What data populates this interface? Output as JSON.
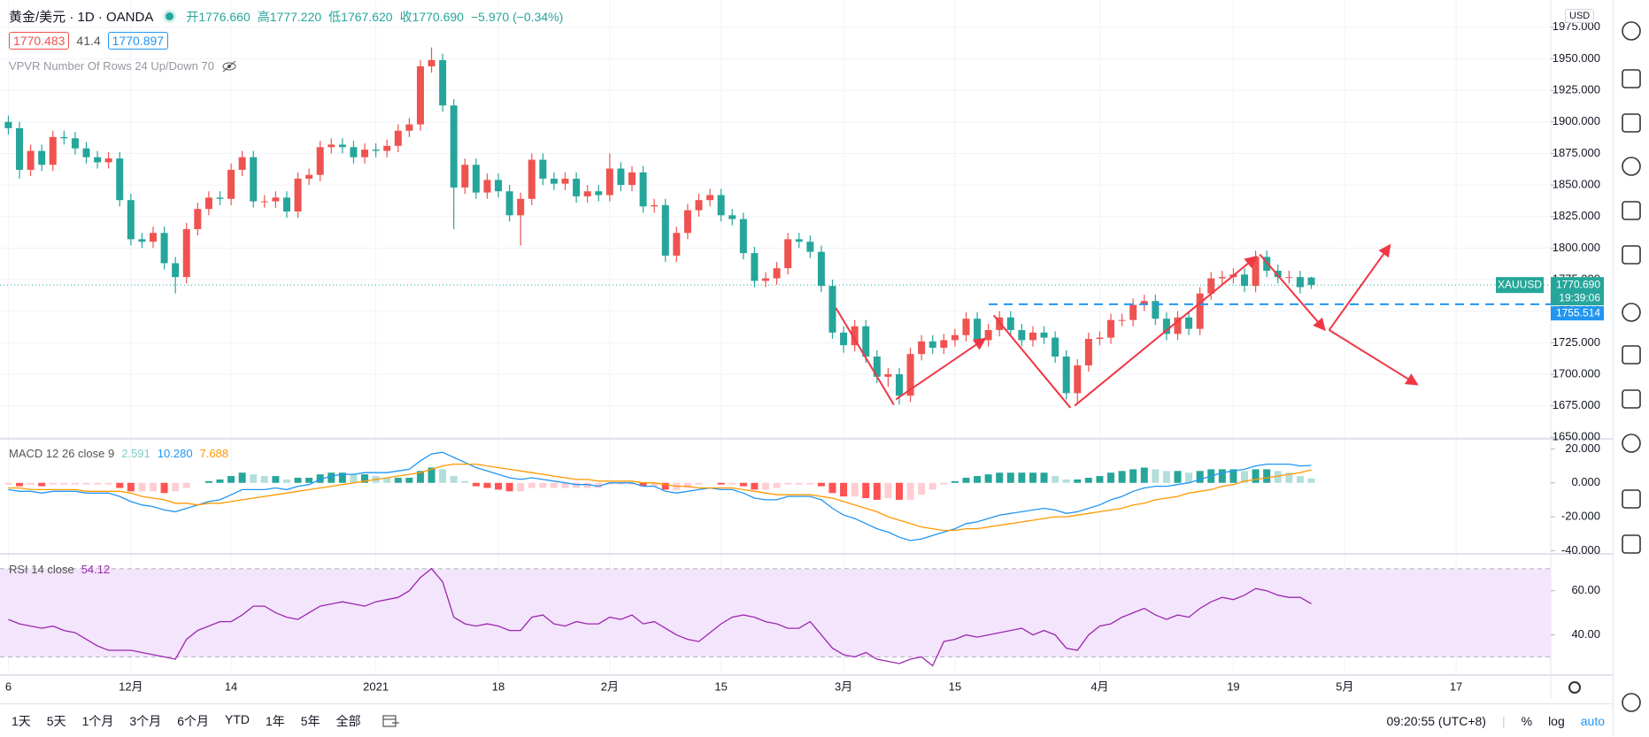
{
  "header": {
    "title": "黄金/美元 · 1D · OANDA",
    "ohlc": [
      "开1776.660",
      "高1777.220",
      "低1767.620",
      "收1770.690",
      "−5.970 (−0.34%)"
    ],
    "bid": "1770.483",
    "spread": "41.4",
    "ask": "1770.897",
    "indicator": "VPVR Number Of Rows 24 Up/Down 70",
    "currency": "USD"
  },
  "toolbar": {
    "ranges": [
      "1天",
      "5天",
      "1个月",
      "3个月",
      "6个月",
      "YTD",
      "1年",
      "5年",
      "全部"
    ],
    "clock": "09:20:55 (UTC+8)",
    "options": [
      "%",
      "log",
      "auto"
    ]
  },
  "chart_data": [
    {
      "type": "candlestick",
      "up_color": "#ef5350",
      "down_color": "#26a69a",
      "grid": true,
      "xlim": [
        -0.75,
        138.5
      ],
      "ylim": [
        1649.5,
        1996.6
      ],
      "yticks": [
        {
          "value": 1650,
          "label": "1650.000"
        },
        {
          "value": 1675,
          "label": "1675.000"
        },
        {
          "value": 1700,
          "label": "1700.000"
        },
        {
          "value": 1725,
          "label": "1725.000"
        },
        {
          "value": 1750,
          "label": "1750.000"
        },
        {
          "value": 1775,
          "label": "1775.000"
        },
        {
          "value": 1800,
          "label": "1800.000"
        },
        {
          "value": 1825,
          "label": "1825.000"
        },
        {
          "value": 1850,
          "label": "1850.000"
        },
        {
          "value": 1875,
          "label": "1875.000"
        },
        {
          "value": 1900,
          "label": "1900.000"
        },
        {
          "value": 1925,
          "label": "1925.000"
        },
        {
          "value": 1950,
          "label": "1950.000"
        },
        {
          "value": 1975,
          "label": "1975.000"
        }
      ],
      "xticks": [
        {
          "value": 0,
          "label": "6"
        },
        {
          "value": 11,
          "label": "12月"
        },
        {
          "value": 20,
          "label": "14"
        },
        {
          "value": 33,
          "label": "2021"
        },
        {
          "value": 44,
          "label": "18"
        },
        {
          "value": 54,
          "label": "2月"
        },
        {
          "value": 64,
          "label": "15"
        },
        {
          "value": 75,
          "label": "3月"
        },
        {
          "value": 85,
          "label": "15"
        },
        {
          "value": 98,
          "label": "4月"
        },
        {
          "value": 110,
          "label": "19"
        },
        {
          "value": 120,
          "label": "5月"
        },
        {
          "value": 130,
          "label": "17"
        }
      ],
      "open": [
        1900,
        1895,
        1862,
        1877,
        1866,
        1888,
        1887,
        1879,
        1872,
        1868,
        1871,
        1838,
        1807,
        1805,
        1812,
        1788,
        1777,
        1815,
        1831,
        1840,
        1839,
        1862,
        1872,
        1837,
        1837,
        1840,
        1829,
        1855,
        1858,
        1880,
        1882,
        1880,
        1872,
        1878,
        1877,
        1881,
        1893,
        1898,
        1944,
        1949,
        1913,
        1848,
        1866,
        1844,
        1854,
        1845,
        1826,
        1839,
        1870,
        1855,
        1851,
        1855,
        1841,
        1845,
        1842,
        1863,
        1850,
        1860,
        1833,
        1834,
        1794,
        1812,
        1830,
        1838,
        1842,
        1826,
        1823,
        1796,
        1774,
        1776,
        1784,
        1807,
        1805,
        1797,
        1770,
        1733,
        1723,
        1738,
        1714,
        1698,
        1700,
        1683,
        1716,
        1726,
        1721,
        1727,
        1731,
        1744,
        1727,
        1735,
        1745,
        1735,
        1727,
        1733,
        1729,
        1714,
        1685,
        1707,
        1728,
        1729,
        1743,
        1743,
        1755,
        1758,
        1744,
        1732,
        1745,
        1736,
        1764,
        1776,
        1777,
        1779,
        1770,
        1793,
        1782,
        1777,
        1777,
        1776.66
      ],
      "high": [
        1905,
        1900,
        1882,
        1882,
        1893,
        1893,
        1892,
        1884,
        1877,
        1876,
        1876,
        1843,
        1812,
        1817,
        1817,
        1793,
        1820,
        1836,
        1845,
        1845,
        1867,
        1877,
        1877,
        1842,
        1845,
        1845,
        1860,
        1863,
        1885,
        1887,
        1887,
        1885,
        1883,
        1883,
        1886,
        1898,
        1903,
        1949,
        1959,
        1954,
        1918,
        1871,
        1871,
        1859,
        1859,
        1850,
        1844,
        1875,
        1875,
        1860,
        1860,
        1860,
        1850,
        1850,
        1875,
        1868,
        1865,
        1865,
        1839,
        1839,
        1817,
        1835,
        1843,
        1847,
        1847,
        1831,
        1828,
        1801,
        1781,
        1789,
        1812,
        1812,
        1810,
        1802,
        1775,
        1738,
        1743,
        1743,
        1719,
        1705,
        1705,
        1721,
        1731,
        1731,
        1732,
        1736,
        1749,
        1749,
        1740,
        1750,
        1750,
        1740,
        1738,
        1738,
        1734,
        1719,
        1712,
        1733,
        1734,
        1748,
        1748,
        1760,
        1763,
        1763,
        1749,
        1750,
        1750,
        1769,
        1781,
        1782,
        1784,
        1784,
        1798,
        1798,
        1787,
        1782,
        1782,
        1777.22
      ],
      "low": [
        1890,
        1855,
        1857,
        1861,
        1861,
        1882,
        1874,
        1867,
        1863,
        1863,
        1833,
        1802,
        1800,
        1800,
        1783,
        1764,
        1772,
        1810,
        1826,
        1834,
        1834,
        1857,
        1832,
        1832,
        1832,
        1824,
        1824,
        1850,
        1853,
        1875,
        1875,
        1867,
        1867,
        1872,
        1872,
        1876,
        1888,
        1893,
        1939,
        1908,
        1815,
        1843,
        1839,
        1839,
        1840,
        1821,
        1802,
        1834,
        1850,
        1846,
        1846,
        1836,
        1836,
        1837,
        1837,
        1845,
        1845,
        1828,
        1828,
        1789,
        1789,
        1807,
        1825,
        1833,
        1821,
        1818,
        1791,
        1769,
        1769,
        1771,
        1779,
        1800,
        1792,
        1765,
        1728,
        1717,
        1718,
        1709,
        1693,
        1690,
        1676,
        1678,
        1711,
        1716,
        1716,
        1722,
        1726,
        1722,
        1722,
        1730,
        1730,
        1722,
        1722,
        1724,
        1709,
        1680,
        1677,
        1702,
        1723,
        1724,
        1738,
        1738,
        1750,
        1739,
        1727,
        1727,
        1731,
        1731,
        1759,
        1771,
        1772,
        1765,
        1765,
        1777,
        1772,
        1772,
        1764,
        1767.62
      ],
      "close": [
        1895,
        1862,
        1877,
        1866,
        1888,
        1887,
        1879,
        1872,
        1868,
        1871,
        1838,
        1807,
        1805,
        1812,
        1788,
        1777,
        1815,
        1831,
        1840,
        1839,
        1862,
        1872,
        1837,
        1837,
        1840,
        1829,
        1855,
        1858,
        1880,
        1882,
        1880,
        1872,
        1878,
        1877,
        1881,
        1893,
        1898,
        1944,
        1949,
        1913,
        1848,
        1866,
        1844,
        1854,
        1845,
        1826,
        1839,
        1870,
        1855,
        1851,
        1855,
        1841,
        1845,
        1842,
        1863,
        1850,
        1860,
        1833,
        1834,
        1794,
        1812,
        1830,
        1838,
        1842,
        1826,
        1823,
        1796,
        1774,
        1776,
        1784,
        1807,
        1805,
        1797,
        1770,
        1733,
        1723,
        1738,
        1714,
        1698,
        1700,
        1683,
        1716,
        1726,
        1721,
        1727,
        1731,
        1744,
        1727,
        1735,
        1745,
        1735,
        1727,
        1733,
        1729,
        1714,
        1685,
        1707,
        1728,
        1729,
        1743,
        1743,
        1755,
        1758,
        1744,
        1732,
        1745,
        1736,
        1764,
        1776,
        1777,
        1779,
        1770,
        1793,
        1782,
        1777,
        1777,
        1769,
        1770.69
      ],
      "last_price": {
        "value": 1770.69,
        "label": "1770.690",
        "color": "#26a69a"
      },
      "symbol_tag": "XAUUSD",
      "countdown": "19:39:06",
      "level": {
        "value": 1755.514,
        "label": "1755.514",
        "color": "#2196f3"
      }
    },
    {
      "type": "macd",
      "title": "MACD 12 26 close 9",
      "ylim": [
        -41.3,
        25.4
      ],
      "yticks": [
        {
          "value": 20,
          "label": "20.000"
        },
        {
          "value": 0,
          "label": "0.000"
        },
        {
          "value": -20,
          "label": "-20.000"
        },
        {
          "value": -40,
          "label": "-40.000"
        }
      ],
      "histogram": {
        "colors": [
          "#26a69a",
          "#b2dfdb",
          "#ff5252",
          "#ffcdd2"
        ],
        "value_label": "2.591",
        "values": [
          -1,
          -2,
          -1,
          -2,
          -1,
          -1,
          -1,
          -1,
          -1,
          -1,
          -3,
          -5,
          -5,
          -5,
          -6,
          -5,
          -3,
          0,
          1,
          2,
          4,
          6,
          5,
          4,
          4,
          2,
          3,
          3,
          5,
          6,
          6,
          5,
          5,
          4,
          3,
          3,
          3,
          7,
          9,
          8,
          4,
          1,
          -2,
          -3,
          -4,
          -5,
          -5,
          -3,
          -3,
          -3,
          -3,
          -3,
          -3,
          -3,
          -1,
          -1,
          -1,
          -2,
          -2,
          -4,
          -4,
          -3,
          -1,
          0,
          -1,
          -1,
          -2,
          -4,
          -4,
          -3,
          -1,
          -1,
          -1,
          -2,
          -6,
          -8,
          -8,
          -9,
          -10,
          -9,
          -10,
          -10,
          -7,
          -4,
          -1,
          1,
          3,
          4,
          5,
          6,
          6,
          6,
          6,
          6,
          4,
          2,
          2,
          3,
          4,
          6,
          7,
          8,
          9,
          8,
          7,
          7,
          6,
          7,
          8,
          8,
          8,
          7,
          8,
          8,
          7,
          6,
          4,
          2.591
        ]
      },
      "series": [
        {
          "color": "#2196f3",
          "value_label": "10.280",
          "values": [
            -4,
            -5,
            -5,
            -6,
            -5,
            -5,
            -5,
            -6,
            -6,
            -6,
            -8,
            -11,
            -13,
            -14,
            -16,
            -17,
            -15,
            -13,
            -11,
            -10,
            -7,
            -4,
            -4,
            -4,
            -3,
            -4,
            -2,
            -1,
            2,
            4,
            5,
            5,
            6,
            6,
            6,
            7,
            8,
            13,
            17,
            18,
            15,
            12,
            9,
            7,
            5,
            3,
            2,
            3,
            2,
            1,
            0,
            -1,
            -1,
            -2,
            0,
            0,
            0,
            -2,
            -2,
            -5,
            -6,
            -5,
            -4,
            -3,
            -4,
            -4,
            -6,
            -9,
            -10,
            -10,
            -8,
            -8,
            -8,
            -10,
            -15,
            -19,
            -21,
            -24,
            -27,
            -29,
            -32,
            -34,
            -33,
            -31,
            -29,
            -27,
            -24,
            -23,
            -21,
            -19,
            -18,
            -17,
            -16,
            -15,
            -16,
            -18,
            -17,
            -15,
            -13,
            -10,
            -8,
            -5,
            -3,
            -2,
            -2,
            -1,
            0,
            2,
            4,
            6,
            7,
            8,
            10,
            11,
            11,
            11,
            10,
            10.28
          ]
        },
        {
          "color": "#ff9800",
          "value_label": "7.688",
          "values": [
            -3,
            -3,
            -4,
            -4,
            -4,
            -4,
            -4,
            -5,
            -5,
            -5,
            -5,
            -6,
            -8,
            -9,
            -10,
            -12,
            -12,
            -13,
            -12,
            -12,
            -11,
            -10,
            -9,
            -8,
            -7,
            -6,
            -5,
            -4,
            -3,
            -2,
            -1,
            0,
            1,
            2,
            3,
            4,
            5,
            6,
            8,
            10,
            11,
            11,
            11,
            10,
            9,
            8,
            7,
            6,
            5,
            4,
            3,
            2,
            2,
            1,
            1,
            1,
            1,
            0,
            0,
            -1,
            -2,
            -2,
            -3,
            -3,
            -3,
            -3,
            -4,
            -5,
            -6,
            -7,
            -7,
            -7,
            -7,
            -8,
            -9,
            -11,
            -13,
            -15,
            -17,
            -20,
            -22,
            -24,
            -26,
            -27,
            -28,
            -28,
            -27,
            -27,
            -26,
            -25,
            -24,
            -23,
            -22,
            -21,
            -20,
            -20,
            -19,
            -18,
            -17,
            -16,
            -15,
            -13,
            -12,
            -10,
            -9,
            -8,
            -6,
            -5,
            -4,
            -2,
            -1,
            1,
            2,
            3,
            4,
            5,
            6,
            7.688
          ]
        }
      ]
    },
    {
      "type": "rsi",
      "title": "RSI 14 close",
      "color": "#9c27b0",
      "value_label": "54.12",
      "ylim": [
        22.2,
        76.3
      ],
      "band": [
        30,
        70
      ],
      "band_color": "#f3e5fb",
      "yticks": [
        {
          "value": 60,
          "label": "60.00"
        },
        {
          "value": 40,
          "label": "40.00"
        }
      ],
      "values": [
        47,
        45,
        44,
        43,
        44,
        42,
        41,
        38,
        35,
        33,
        33,
        33,
        32,
        31,
        30,
        29,
        38,
        42,
        44,
        46,
        46,
        49,
        53,
        53,
        50,
        48,
        47,
        50,
        53,
        54,
        55,
        54,
        53,
        55,
        56,
        57,
        60,
        66,
        70,
        64,
        48,
        45,
        44,
        45,
        44,
        42,
        42,
        48,
        49,
        45,
        44,
        46,
        45,
        45,
        48,
        47,
        49,
        45,
        46,
        43,
        40,
        38,
        37,
        41,
        45,
        48,
        49,
        48,
        46,
        45,
        43,
        43,
        46,
        40,
        34,
        31,
        30,
        32,
        29,
        28,
        27,
        29,
        30,
        26,
        37,
        38,
        40,
        39,
        40,
        41,
        42,
        43,
        40,
        42,
        40,
        34,
        33,
        40,
        44,
        45,
        48,
        50,
        52,
        49,
        47,
        49,
        48,
        52,
        55,
        57,
        56,
        58,
        61,
        60,
        58,
        57,
        57,
        54.12
      ]
    }
  ]
}
